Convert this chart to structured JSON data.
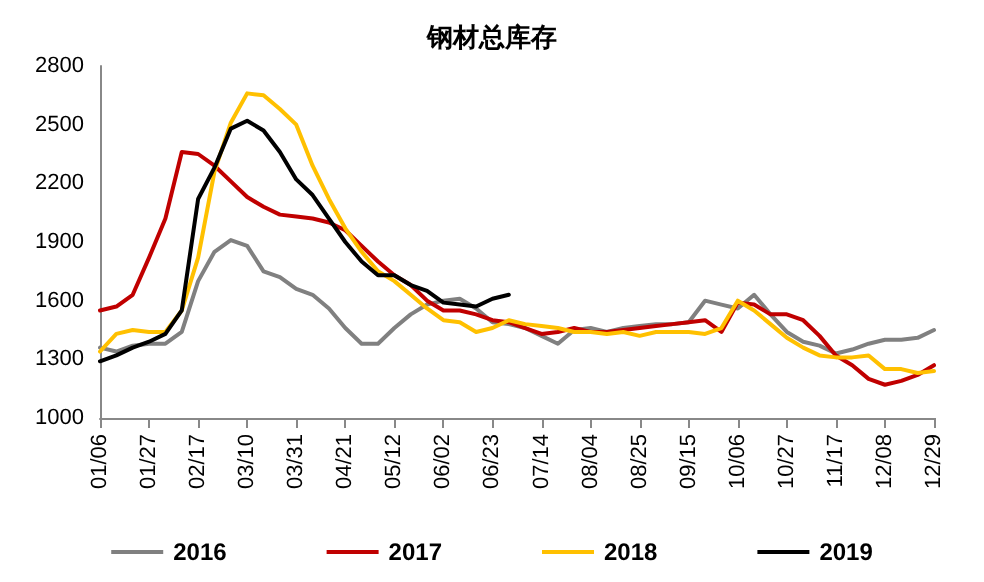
{
  "chart_data": {
    "type": "line",
    "title": "钢材总库存",
    "categories": [
      "01/06",
      null,
      null,
      "01/27",
      null,
      null,
      "02/17",
      null,
      null,
      "03/10",
      null,
      null,
      "03/31",
      null,
      null,
      "04/21",
      null,
      null,
      "05/12",
      null,
      null,
      "06/02",
      null,
      null,
      "06/23",
      null,
      null,
      "07/14",
      null,
      null,
      "08/04",
      null,
      null,
      "08/25",
      null,
      null,
      "09/15",
      null,
      null,
      "10/06",
      null,
      null,
      "10/27",
      null,
      null,
      "11/17",
      null,
      null,
      "12/08",
      null,
      null,
      "12/29"
    ],
    "series": [
      {
        "name": "2016",
        "color": "#808080",
        "values": [
          1360,
          1340,
          1370,
          1380,
          1380,
          1440,
          1700,
          1850,
          1910,
          1880,
          1750,
          1720,
          1660,
          1630,
          1560,
          1460,
          1380,
          1380,
          1460,
          1530,
          1580,
          1600,
          1610,
          1560,
          1490,
          1480,
          1460,
          1420,
          1380,
          1450,
          1460,
          1440,
          1460,
          1470,
          1480,
          1480,
          1490,
          1600,
          1580,
          1560,
          1630,
          1530,
          1440,
          1390,
          1370,
          1330,
          1350,
          1380,
          1400,
          1400,
          1410,
          1450
        ]
      },
      {
        "name": "2017",
        "color": "#c00000",
        "values": [
          1550,
          1570,
          1630,
          1820,
          2020,
          2360,
          2350,
          2290,
          2210,
          2130,
          2080,
          2040,
          2030,
          2020,
          2000,
          1960,
          1880,
          1800,
          1730,
          1680,
          1600,
          1550,
          1550,
          1530,
          1500,
          1490,
          1460,
          1430,
          1440,
          1460,
          1440,
          1440,
          1450,
          1460,
          1470,
          1480,
          1490,
          1500,
          1440,
          1590,
          1580,
          1530,
          1530,
          1500,
          1420,
          1320,
          1270,
          1200,
          1170,
          1190,
          1220,
          1270
        ]
      },
      {
        "name": "2018",
        "color": "#ffc000",
        "values": [
          1340,
          1430,
          1450,
          1440,
          1440,
          1550,
          1820,
          2260,
          2510,
          2660,
          2650,
          2580,
          2500,
          2290,
          2120,
          1970,
          1850,
          1750,
          1700,
          1630,
          1560,
          1500,
          1490,
          1440,
          1460,
          1500,
          1480,
          1470,
          1460,
          1440,
          1440,
          1430,
          1440,
          1420,
          1440,
          1440,
          1440,
          1430,
          1460,
          1600,
          1550,
          1480,
          1410,
          1360,
          1320,
          1310,
          1310,
          1320,
          1250,
          1250,
          1230,
          1240
        ]
      },
      {
        "name": "2019",
        "color": "#000000",
        "values": [
          1290,
          1320,
          1360,
          1390,
          1430,
          1550,
          2120,
          2280,
          2480,
          2520,
          2470,
          2360,
          2220,
          2140,
          2020,
          1900,
          1800,
          1730,
          1730,
          1680,
          1650,
          1590,
          1580,
          1570,
          1610,
          1630,
          null,
          null,
          null,
          null,
          null,
          null,
          null,
          null,
          null,
          null,
          null,
          null,
          null,
          null,
          null,
          null,
          null,
          null,
          null,
          null,
          null,
          null,
          null,
          null,
          null,
          null
        ]
      }
    ],
    "ylim": [
      1000,
      2800
    ],
    "yticks": [
      {
        "value": 1000,
        "label": "1000"
      },
      {
        "value": 1300,
        "label": "1300"
      },
      {
        "value": 1600,
        "label": "1600"
      },
      {
        "value": 1900,
        "label": "1900"
      },
      {
        "value": 2200,
        "label": "2200"
      },
      {
        "value": 2500,
        "label": "2500"
      },
      {
        "value": 2800,
        "label": "2800"
      }
    ],
    "grid": false,
    "legend": "bottom",
    "marker": "none",
    "line_style": "solid"
  }
}
